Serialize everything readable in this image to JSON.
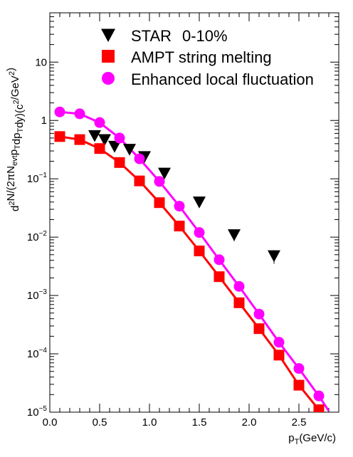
{
  "chart_data": {
    "type": "scatter",
    "xlabel": "p_T(GeV/c)",
    "ylabel": "d²N/(2πN_evt p_T dp_T dy)(c²/GeV²)",
    "xlim": [
      0,
      2.9
    ],
    "ylim": [
      1e-05,
      70
    ],
    "y_scale": "log",
    "x_ticks": [
      {
        "value": 0.0,
        "label": "0.0"
      },
      {
        "value": 0.5,
        "label": "0.5"
      },
      {
        "value": 1.0,
        "label": "1.0"
      },
      {
        "value": 1.5,
        "label": "1.5"
      },
      {
        "value": 2.0,
        "label": "2.0"
      },
      {
        "value": 2.5,
        "label": "2.5"
      }
    ],
    "y_ticks": [
      {
        "value": 1e-05,
        "mantissa": "10",
        "exp": "−5"
      },
      {
        "value": 0.0001,
        "mantissa": "10",
        "exp": "−4"
      },
      {
        "value": 0.001,
        "mantissa": "10",
        "exp": "−3"
      },
      {
        "value": 0.01,
        "mantissa": "10",
        "exp": "−2"
      },
      {
        "value": 0.1,
        "mantissa": "10",
        "exp": "−1"
      },
      {
        "value": 1,
        "mantissa": "1",
        "exp": ""
      },
      {
        "value": 10,
        "mantissa": "10",
        "exp": ""
      }
    ],
    "legend_position": "top-right",
    "legend_extra_label": "0-10%",
    "series": [
      {
        "name": "STAR",
        "marker": "triangle-down",
        "color": "#000000",
        "x": [
          0.45,
          0.55,
          0.65,
          0.8,
          0.95,
          1.15,
          1.5,
          1.85,
          2.25
        ],
        "y": [
          0.55,
          0.47,
          0.36,
          0.32,
          0.24,
          0.125,
          0.04,
          0.011,
          0.0048
        ],
        "err_low": [
          0.55,
          0.47,
          0.36,
          0.32,
          0.24,
          0.125,
          0.04,
          0.0085,
          0.0035
        ],
        "err_high": [
          0.55,
          0.47,
          0.36,
          0.32,
          0.24,
          0.125,
          0.04,
          0.0135,
          0.006
        ]
      },
      {
        "name": "AMPT string melting",
        "marker": "square",
        "color": "#ff0000",
        "x": [
          0.1,
          0.3,
          0.5,
          0.7,
          0.9,
          1.1,
          1.3,
          1.5,
          1.7,
          1.9,
          2.1,
          2.3,
          2.5,
          2.7
        ],
        "y": [
          0.53,
          0.47,
          0.33,
          0.19,
          0.092,
          0.039,
          0.0155,
          0.0058,
          0.0021,
          0.00075,
          0.00027,
          9.5e-05,
          2.9e-05,
          1.1e-05
        ],
        "curve_x": [
          0.1,
          0.3,
          0.5,
          0.7,
          0.9,
          1.1,
          1.3,
          1.5,
          1.7,
          1.9,
          2.1,
          2.3,
          2.5,
          2.7,
          2.8
        ],
        "curve_y": [
          0.53,
          0.47,
          0.33,
          0.19,
          0.092,
          0.039,
          0.0155,
          0.0058,
          0.0021,
          0.00075,
          0.00027,
          9.5e-05,
          2.9e-05,
          1.1e-05,
          5.5e-06
        ]
      },
      {
        "name": "Enhanced local fluctuation",
        "marker": "circle",
        "color": "#ff00ff",
        "x": [
          0.1,
          0.3,
          0.5,
          0.7,
          0.9,
          1.1,
          1.3,
          1.5,
          1.7,
          1.9,
          2.1,
          2.3,
          2.5,
          2.7
        ],
        "y": [
          1.4,
          1.3,
          0.92,
          0.5,
          0.22,
          0.09,
          0.034,
          0.012,
          0.0041,
          0.00143,
          0.00048,
          0.000158,
          5.6e-05,
          1.9e-05
        ],
        "curve_x": [
          0.1,
          0.3,
          0.5,
          0.7,
          0.9,
          1.1,
          1.3,
          1.5,
          1.7,
          1.9,
          2.1,
          2.3,
          2.5,
          2.7,
          2.8
        ],
        "curve_y": [
          1.4,
          1.3,
          0.92,
          0.5,
          0.22,
          0.09,
          0.034,
          0.012,
          0.0041,
          0.00143,
          0.00048,
          0.000158,
          5.6e-05,
          1.9e-05,
          1.05e-05
        ]
      }
    ]
  }
}
